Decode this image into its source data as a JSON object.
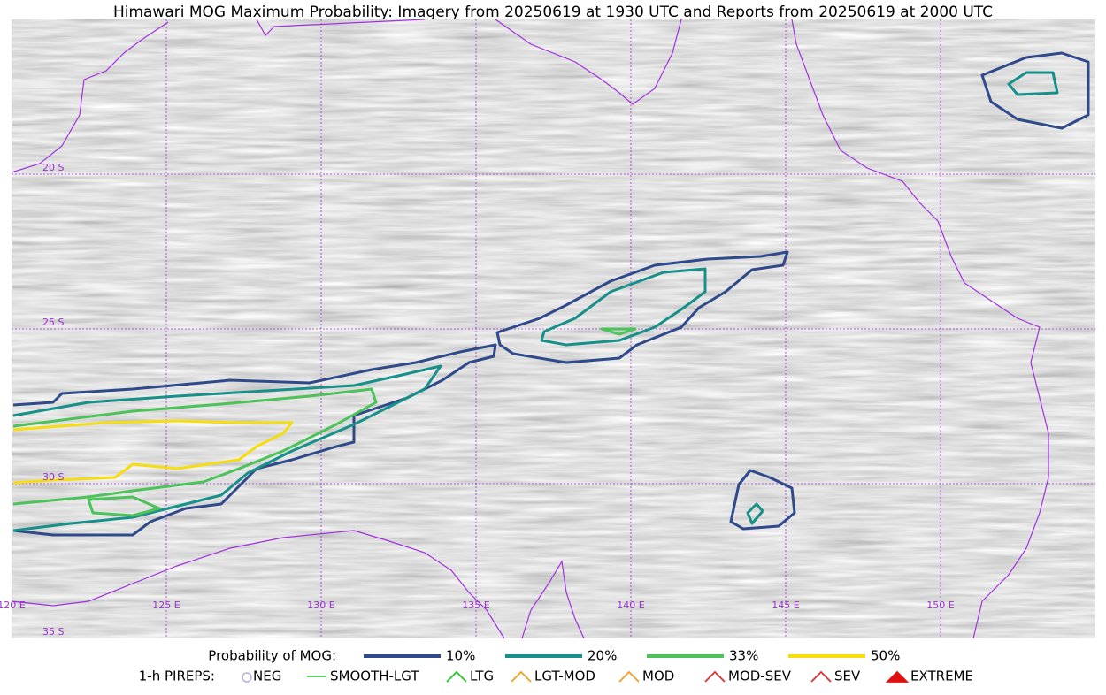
{
  "title": "Himawari MOG Maximum Probability: Imagery from 20250619 at 1930 UTC and Reports from 20250619 at 2000 UTC",
  "map": {
    "lat_labels": [
      "20 S",
      "25 S",
      "30 S",
      "35 S"
    ],
    "lon_labels": [
      "120 E",
      "125 E",
      "130 E",
      "135 E",
      "140 E",
      "145 E",
      "150 E"
    ]
  },
  "legend": {
    "probability": {
      "title": "Probability of MOG:",
      "items": [
        "10%",
        "20%",
        "33%",
        "50%"
      ]
    },
    "pireps": {
      "title": "1-h PIREPS:",
      "items": [
        "NEG",
        "SMOOTH-LGT",
        "LTG",
        "LGT-MOD",
        "MOD",
        "MOD-SEV",
        "SEV",
        "EXTREME"
      ]
    }
  }
}
